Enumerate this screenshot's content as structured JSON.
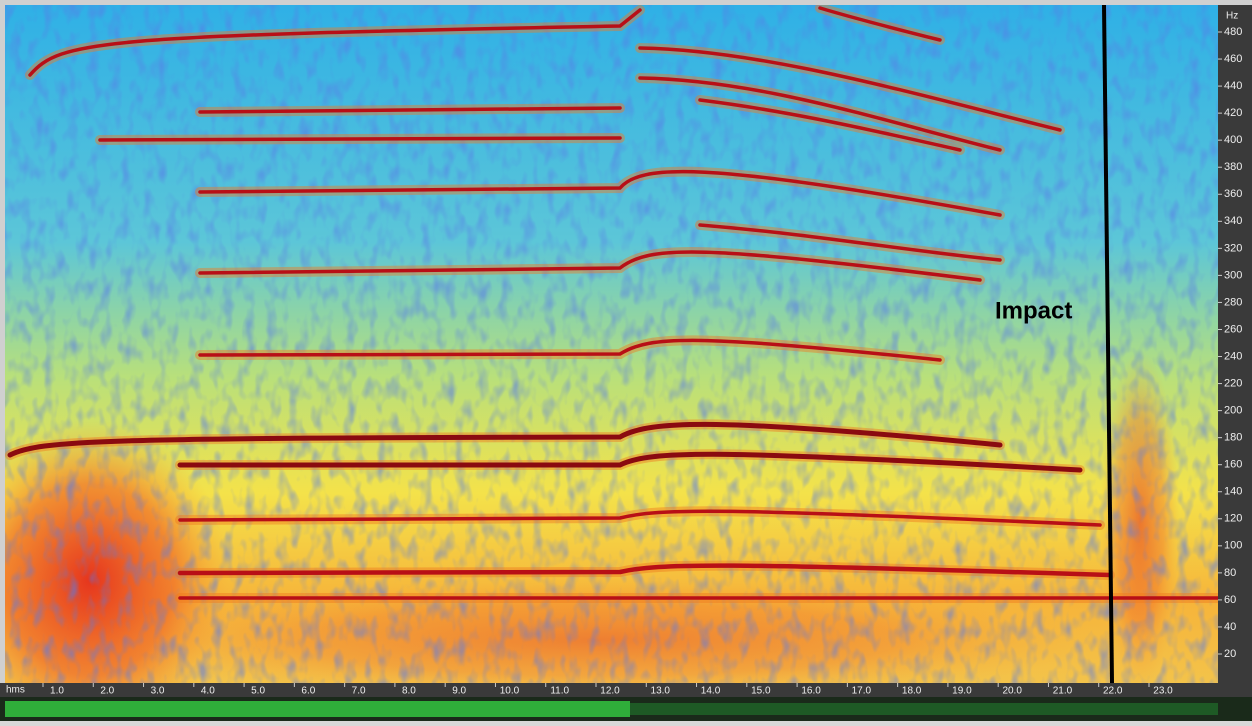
{
  "spectrogram": {
    "frequency_unit": "Hz",
    "frequency_ticks": [
      480,
      460,
      440,
      420,
      400,
      380,
      360,
      340,
      320,
      300,
      280,
      260,
      240,
      220,
      200,
      180,
      160,
      140,
      120,
      100,
      80,
      60,
      40,
      20
    ],
    "time_unit": "hms",
    "time_ticks": [
      "1.0",
      "2.0",
      "3.0",
      "4.0",
      "5.0",
      "6.0",
      "7.0",
      "8.0",
      "9.0",
      "10.0",
      "11.0",
      "12.0",
      "13.0",
      "14.0",
      "15.0",
      "16.0",
      "17.0",
      "18.0",
      "19.0",
      "20.0",
      "21.0",
      "22.0",
      "23.0"
    ],
    "annotation": "Impact"
  }
}
